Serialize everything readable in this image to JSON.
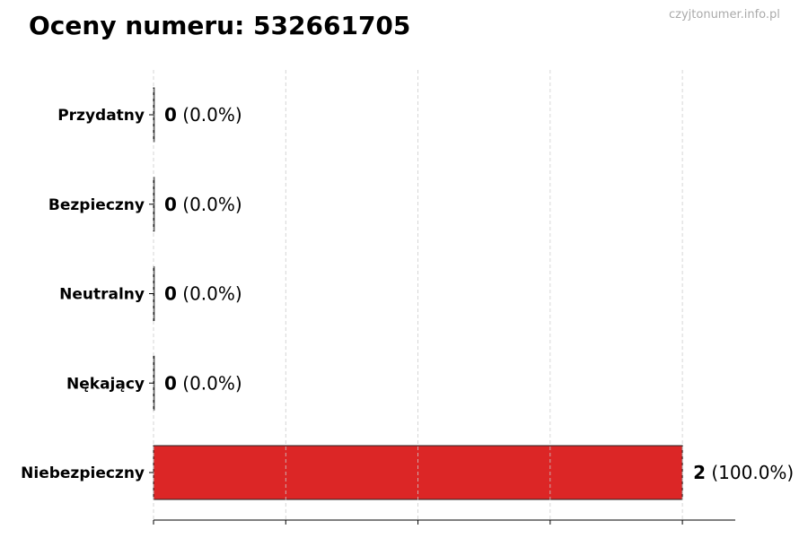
{
  "title": "Oceny numeru: 532661705",
  "watermark": "czyjtonumer.info.pl",
  "chart_data": {
    "type": "bar",
    "orientation": "horizontal",
    "categories": [
      "Przydatny",
      "Bezpieczny",
      "Neutralny",
      "Nękający",
      "Niebezpieczny"
    ],
    "values": [
      0,
      0,
      0,
      0,
      2
    ],
    "percent_labels": [
      "(0.0%)",
      "(0.0%)",
      "(0.0%)",
      "(0.0%)",
      "(100.0%)"
    ],
    "xlim": [
      0,
      2.2
    ],
    "xticks": [
      0,
      0.5,
      1,
      1.5,
      2
    ],
    "grid": "x dashed",
    "bar_color": "#dc2626",
    "edge_color": "#222222"
  }
}
